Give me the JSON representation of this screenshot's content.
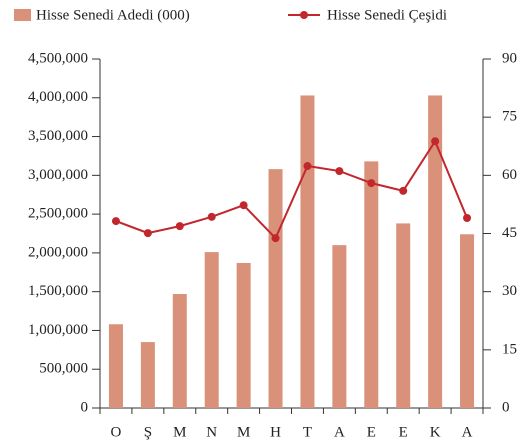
{
  "chart_data": {
    "type": "bar_line",
    "categories": [
      "O",
      "Ş",
      "M",
      "N",
      "M",
      "H",
      "T",
      "A",
      "E",
      "E",
      "K",
      "A"
    ],
    "series": [
      {
        "name": "Hisse Senedi Adedi (000)",
        "color": "#d9917a",
        "type": "bar",
        "values": [
          1080000,
          850000,
          1470000,
          2010000,
          1870000,
          3080000,
          4030000,
          2100000,
          3180000,
          2380000,
          4030000,
          2240000
        ]
      },
      {
        "name": "Hisse Senedi Çeşidi",
        "color": "#c1272d",
        "type": "line",
        "axis": "y2",
        "values": [
          48.2,
          45.1,
          46.9,
          49.3,
          52.3,
          43.8,
          62.4,
          61.1,
          58.0,
          56.0,
          68.8,
          49.0
        ]
      }
    ],
    "ylim": [
      0,
      4500000
    ],
    "yticks": [
      0,
      {
        "value": 500000,
        "label": "500,000"
      },
      {
        "value": 1000000,
        "label": "1,000,000"
      },
      {
        "value": 1500000,
        "label": "1,500,000"
      },
      {
        "value": 2000000,
        "label": "2,000,000"
      },
      {
        "value": 2500000,
        "label": "2,500,000"
      },
      {
        "value": 3000000,
        "label": "3,000,000"
      },
      {
        "value": 3500000,
        "label": "3,500,000"
      },
      {
        "value": 4000000,
        "label": "4,000,000"
      },
      {
        "value": 4500000,
        "label": "4,500,000"
      }
    ],
    "y2lim": [
      0,
      90
    ],
    "y2ticks": [
      0,
      15,
      30,
      45,
      60,
      75,
      90
    ],
    "legend": "top"
  }
}
